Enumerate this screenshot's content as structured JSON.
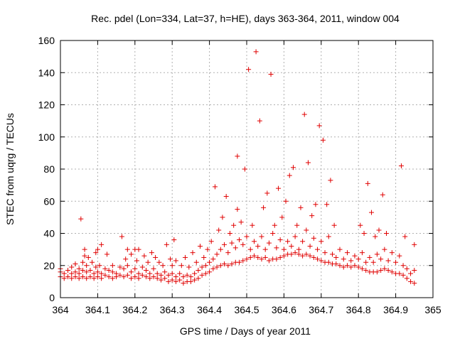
{
  "chart_data": {
    "type": "scatter",
    "title": "Rec. pdel (Lon=334, Lat=37, h=HE), days 363-364, 2011, window 004",
    "xlabel": "GPS time / Days of year 2011",
    "ylabel": "STEC from uqrg / TECUs",
    "xlim": [
      364,
      365
    ],
    "ylim": [
      0,
      160
    ],
    "x_ticks": [
      "364",
      "364.1",
      "364.2",
      "364.3",
      "364.4",
      "364.5",
      "364.6",
      "364.7",
      "364.8",
      "364.9",
      "365"
    ],
    "y_ticks": [
      "0",
      "20",
      "40",
      "60",
      "80",
      "100",
      "120",
      "140",
      "160"
    ],
    "x_tick_values": [
      364,
      364.1,
      364.2,
      364.3,
      364.4,
      364.5,
      364.6,
      364.7,
      364.8,
      364.9,
      365
    ],
    "y_tick_values": [
      0,
      20,
      40,
      60,
      80,
      100,
      120,
      140,
      160
    ],
    "grid": true,
    "marker": "+",
    "marker_color": "#e00000",
    "points": [
      [
        364.0,
        13
      ],
      [
        364.0,
        16
      ],
      [
        364.0,
        18
      ],
      [
        364.01,
        12
      ],
      [
        364.01,
        15
      ],
      [
        364.02,
        13
      ],
      [
        364.02,
        17
      ],
      [
        364.03,
        12
      ],
      [
        364.03,
        15
      ],
      [
        364.03,
        19
      ],
      [
        364.04,
        13
      ],
      [
        364.04,
        16
      ],
      [
        364.04,
        21
      ],
      [
        364.05,
        12
      ],
      [
        364.05,
        15
      ],
      [
        364.05,
        18
      ],
      [
        364.055,
        49
      ],
      [
        364.06,
        13
      ],
      [
        364.06,
        17
      ],
      [
        364.06,
        22
      ],
      [
        364.065,
        26
      ],
      [
        364.065,
        30
      ],
      [
        364.07,
        12
      ],
      [
        364.07,
        16
      ],
      [
        364.07,
        20
      ],
      [
        364.075,
        25
      ],
      [
        364.08,
        13
      ],
      [
        364.08,
        17
      ],
      [
        364.085,
        22
      ],
      [
        364.09,
        12
      ],
      [
        364.09,
        15
      ],
      [
        364.095,
        19
      ],
      [
        364.095,
        28
      ],
      [
        364.1,
        13
      ],
      [
        364.1,
        16
      ],
      [
        364.1,
        30
      ],
      [
        364.105,
        20
      ],
      [
        364.11,
        12
      ],
      [
        364.11,
        15
      ],
      [
        364.11,
        33
      ],
      [
        364.12,
        14
      ],
      [
        364.12,
        18
      ],
      [
        364.125,
        27
      ],
      [
        364.13,
        13
      ],
      [
        364.13,
        17
      ],
      [
        364.14,
        12
      ],
      [
        364.14,
        16
      ],
      [
        364.14,
        20
      ],
      [
        364.15,
        13
      ],
      [
        364.15,
        15
      ],
      [
        364.16,
        14
      ],
      [
        364.16,
        19
      ],
      [
        364.165,
        38
      ],
      [
        364.17,
        13
      ],
      [
        364.17,
        18
      ],
      [
        364.175,
        24
      ],
      [
        364.18,
        14
      ],
      [
        364.18,
        20
      ],
      [
        364.18,
        30
      ],
      [
        364.19,
        12
      ],
      [
        364.19,
        16
      ],
      [
        364.19,
        27
      ],
      [
        364.2,
        13
      ],
      [
        364.2,
        18
      ],
      [
        364.2,
        30
      ],
      [
        364.205,
        23
      ],
      [
        364.21,
        12
      ],
      [
        364.21,
        15
      ],
      [
        364.21,
        30
      ],
      [
        364.22,
        14
      ],
      [
        364.22,
        19
      ],
      [
        364.225,
        26
      ],
      [
        364.23,
        13
      ],
      [
        364.23,
        17
      ],
      [
        364.235,
        22
      ],
      [
        364.24,
        12
      ],
      [
        364.24,
        15
      ],
      [
        364.245,
        28
      ],
      [
        364.25,
        13
      ],
      [
        364.25,
        18
      ],
      [
        364.255,
        25
      ],
      [
        364.26,
        12
      ],
      [
        364.26,
        15
      ],
      [
        364.265,
        22
      ],
      [
        364.27,
        11
      ],
      [
        364.27,
        14
      ],
      [
        364.275,
        20
      ],
      [
        364.28,
        12
      ],
      [
        364.28,
        16
      ],
      [
        364.285,
        33
      ],
      [
        364.29,
        10
      ],
      [
        364.29,
        14
      ],
      [
        364.295,
        24
      ],
      [
        364.3,
        11
      ],
      [
        364.3,
        15
      ],
      [
        364.3,
        20
      ],
      [
        364.305,
        36
      ],
      [
        364.31,
        10
      ],
      [
        364.31,
        13
      ],
      [
        364.31,
        23
      ],
      [
        364.32,
        11
      ],
      [
        364.32,
        15
      ],
      [
        364.325,
        20
      ],
      [
        364.33,
        9
      ],
      [
        364.33,
        13
      ],
      [
        364.335,
        25
      ],
      [
        364.34,
        10
      ],
      [
        364.34,
        14
      ],
      [
        364.345,
        19
      ],
      [
        364.35,
        10
      ],
      [
        364.35,
        13
      ],
      [
        364.355,
        28
      ],
      [
        364.36,
        11
      ],
      [
        364.36,
        15
      ],
      [
        364.365,
        22
      ],
      [
        364.37,
        12
      ],
      [
        364.37,
        17
      ],
      [
        364.375,
        32
      ],
      [
        364.38,
        14
      ],
      [
        364.38,
        19
      ],
      [
        364.385,
        25
      ],
      [
        364.39,
        15
      ],
      [
        364.39,
        20
      ],
      [
        364.395,
        30
      ],
      [
        364.4,
        16
      ],
      [
        364.4,
        22
      ],
      [
        364.405,
        35
      ],
      [
        364.41,
        18
      ],
      [
        364.41,
        24
      ],
      [
        364.415,
        69
      ],
      [
        364.42,
        19
      ],
      [
        364.42,
        27
      ],
      [
        364.425,
        42
      ],
      [
        364.43,
        20
      ],
      [
        364.43,
        30
      ],
      [
        364.435,
        50
      ],
      [
        364.44,
        21
      ],
      [
        364.44,
        33
      ],
      [
        364.445,
        63
      ],
      [
        364.45,
        20
      ],
      [
        364.45,
        28
      ],
      [
        364.455,
        40
      ],
      [
        364.46,
        21
      ],
      [
        364.46,
        34
      ],
      [
        364.465,
        45
      ],
      [
        364.47,
        22
      ],
      [
        364.47,
        31
      ],
      [
        364.475,
        55
      ],
      [
        364.475,
        88
      ],
      [
        364.48,
        22
      ],
      [
        364.48,
        36
      ],
      [
        364.485,
        47
      ],
      [
        364.49,
        23
      ],
      [
        364.49,
        33
      ],
      [
        364.495,
        80
      ],
      [
        364.5,
        24
      ],
      [
        364.5,
        38
      ],
      [
        364.505,
        142
      ],
      [
        364.51,
        25
      ],
      [
        364.51,
        30
      ],
      [
        364.515,
        45
      ],
      [
        364.52,
        26
      ],
      [
        364.52,
        35
      ],
      [
        364.525,
        153
      ],
      [
        364.53,
        25
      ],
      [
        364.53,
        32
      ],
      [
        364.535,
        110
      ],
      [
        364.54,
        24
      ],
      [
        364.54,
        38
      ],
      [
        364.545,
        56
      ],
      [
        364.55,
        25
      ],
      [
        364.55,
        30
      ],
      [
        364.555,
        65
      ],
      [
        364.56,
        23
      ],
      [
        364.56,
        34
      ],
      [
        364.565,
        139
      ],
      [
        364.57,
        24
      ],
      [
        364.57,
        40
      ],
      [
        364.575,
        45
      ],
      [
        364.58,
        24
      ],
      [
        364.58,
        31
      ],
      [
        364.585,
        68
      ],
      [
        364.59,
        25
      ],
      [
        364.59,
        36
      ],
      [
        364.595,
        50
      ],
      [
        364.6,
        26
      ],
      [
        364.6,
        30
      ],
      [
        364.605,
        60
      ],
      [
        364.61,
        27
      ],
      [
        364.61,
        35
      ],
      [
        364.615,
        76
      ],
      [
        364.62,
        27
      ],
      [
        364.62,
        32
      ],
      [
        364.625,
        81
      ],
      [
        364.63,
        28
      ],
      [
        364.63,
        38
      ],
      [
        364.635,
        45
      ],
      [
        364.64,
        27
      ],
      [
        364.64,
        30
      ],
      [
        364.645,
        56
      ],
      [
        364.65,
        26
      ],
      [
        364.65,
        35
      ],
      [
        364.655,
        114
      ],
      [
        364.66,
        27
      ],
      [
        364.66,
        42
      ],
      [
        364.665,
        84
      ],
      [
        364.67,
        26
      ],
      [
        364.67,
        32
      ],
      [
        364.675,
        51
      ],
      [
        364.68,
        25
      ],
      [
        364.68,
        37
      ],
      [
        364.685,
        58
      ],
      [
        364.69,
        24
      ],
      [
        364.69,
        30
      ],
      [
        364.695,
        107
      ],
      [
        364.7,
        23
      ],
      [
        364.7,
        35
      ],
      [
        364.705,
        98
      ],
      [
        364.71,
        22
      ],
      [
        364.71,
        28
      ],
      [
        364.715,
        58
      ],
      [
        364.72,
        22
      ],
      [
        364.72,
        38
      ],
      [
        364.725,
        73
      ],
      [
        364.73,
        21
      ],
      [
        364.73,
        27
      ],
      [
        364.735,
        45
      ],
      [
        364.74,
        21
      ],
      [
        364.74,
        25
      ],
      [
        364.75,
        20
      ],
      [
        364.75,
        30
      ],
      [
        364.76,
        19
      ],
      [
        364.76,
        24
      ],
      [
        364.77,
        20
      ],
      [
        364.77,
        28
      ],
      [
        364.78,
        19
      ],
      [
        364.78,
        23
      ],
      [
        364.79,
        20
      ],
      [
        364.79,
        26
      ],
      [
        364.8,
        19
      ],
      [
        364.8,
        24
      ],
      [
        364.805,
        45
      ],
      [
        364.81,
        18
      ],
      [
        364.81,
        28
      ],
      [
        364.815,
        40
      ],
      [
        364.82,
        17
      ],
      [
        364.82,
        22
      ],
      [
        364.825,
        71
      ],
      [
        364.83,
        16
      ],
      [
        364.83,
        25
      ],
      [
        364.835,
        53
      ],
      [
        364.84,
        16
      ],
      [
        364.84,
        22
      ],
      [
        364.845,
        38
      ],
      [
        364.85,
        16
      ],
      [
        364.85,
        27
      ],
      [
        364.855,
        42
      ],
      [
        364.86,
        17
      ],
      [
        364.86,
        24
      ],
      [
        364.865,
        64
      ],
      [
        364.87,
        18
      ],
      [
        364.87,
        30
      ],
      [
        364.875,
        40
      ],
      [
        364.88,
        17
      ],
      [
        364.88,
        23
      ],
      [
        364.89,
        16
      ],
      [
        364.89,
        28
      ],
      [
        364.9,
        15
      ],
      [
        364.9,
        22
      ],
      [
        364.91,
        15
      ],
      [
        364.91,
        26
      ],
      [
        364.915,
        82
      ],
      [
        364.92,
        14
      ],
      [
        364.92,
        20
      ],
      [
        364.925,
        38
      ],
      [
        364.93,
        12
      ],
      [
        364.93,
        18
      ],
      [
        364.94,
        10
      ],
      [
        364.94,
        15
      ],
      [
        364.95,
        9
      ],
      [
        364.95,
        17
      ],
      [
        364.95,
        33
      ]
    ]
  }
}
